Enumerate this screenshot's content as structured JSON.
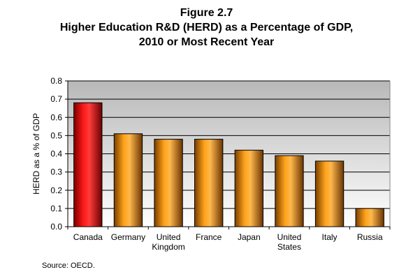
{
  "chart_data": {
    "type": "bar",
    "title": [
      "Figure 2.7",
      "Higher Education R&D (HERD) as a Percentage of GDP,",
      "2010 or Most Recent Year"
    ],
    "xlabel": "",
    "ylabel": "HERD as a % of GDP",
    "categories": [
      [
        "Canada"
      ],
      [
        "Germany"
      ],
      [
        "United",
        "Kingdom"
      ],
      [
        "France"
      ],
      [
        "Japan"
      ],
      [
        "United",
        "States"
      ],
      [
        "Italy"
      ],
      [
        "Russia"
      ]
    ],
    "values": [
      0.68,
      0.51,
      0.48,
      0.48,
      0.42,
      0.39,
      0.36,
      0.1
    ],
    "ylim": [
      0,
      0.8
    ],
    "yticks": [
      "0.0",
      "0.1",
      "0.2",
      "0.3",
      "0.4",
      "0.5",
      "0.6",
      "0.7",
      "0.8"
    ],
    "grid": true,
    "colors": {
      "highlight": "#e00000",
      "bar": "#ff9900",
      "plot_bg_top": "#b8b8b8",
      "plot_bg_bottom": "#ffffff"
    },
    "highlight_index": 0
  },
  "source": "Source: OECD."
}
